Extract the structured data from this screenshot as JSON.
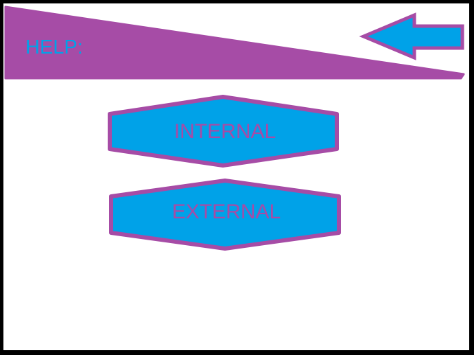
{
  "header": {
    "title": "HELP:",
    "back_button": {
      "icon": "arrow-left-icon"
    }
  },
  "menu": {
    "items": [
      {
        "label": "INTERNAL"
      },
      {
        "label": "EXTERNAL"
      }
    ]
  },
  "colors": {
    "purple": "#a64ca6",
    "blue": "#00a2e8",
    "white": "#ffffff",
    "black": "#000000"
  }
}
